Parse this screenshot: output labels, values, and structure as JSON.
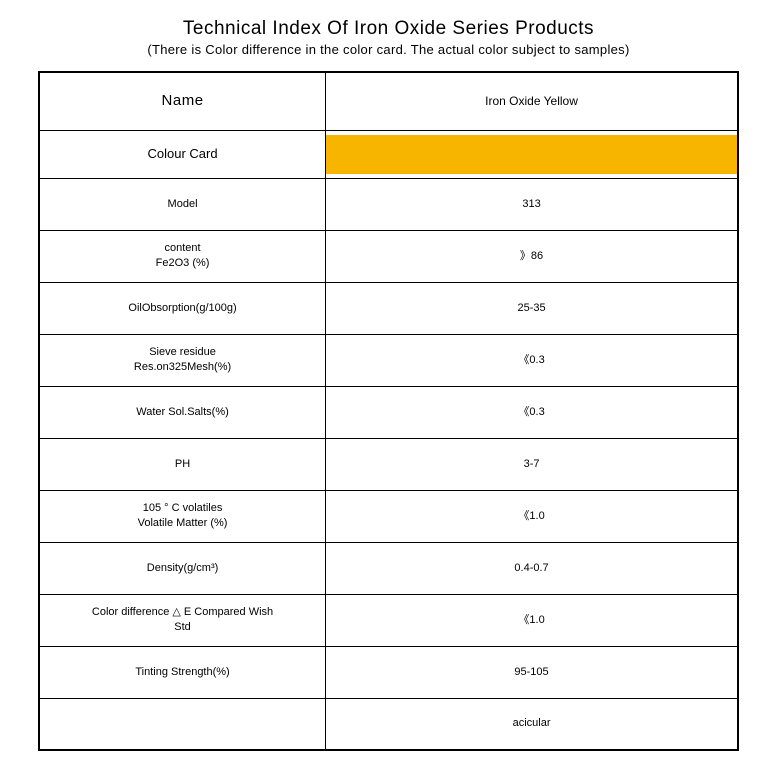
{
  "title": "Technical Index Of Iron Oxide Series Products",
  "subtitle": "(There is Color difference in the color card. The actual color subject to samples)",
  "header": {
    "left": "Name",
    "right": "Iron Oxide Yellow"
  },
  "colour_row": {
    "label": "Colour Card",
    "swatch_color": "#f7b500"
  },
  "rows": [
    {
      "label": "Model",
      "sub": "",
      "value": "313"
    },
    {
      "label": "content",
      "sub": "Fe2O3 (%)",
      "value": "》86"
    },
    {
      "label": "OilObsorption(g/100g)",
      "sub": "",
      "value": "25-35"
    },
    {
      "label": "Sieve residue",
      "sub": "Res.on325Mesh(%)",
      "value": "《0.3"
    },
    {
      "label": "Water Sol.Salts(%)",
      "sub": "",
      "value": "《0.3"
    },
    {
      "label": "PH",
      "sub": "",
      "value": "3-7"
    },
    {
      "label": "105 ° C volatiles",
      "sub": "Volatile Matter (%)",
      "value": "《1.0"
    },
    {
      "label": "Density(g/cm³)",
      "sub": "",
      "value": "0.4-0.7"
    },
    {
      "label": "Color difference △        E Compared Wish",
      "sub": "Std",
      "value": "《1.0"
    },
    {
      "label": "Tinting Strength(%)",
      "sub": "",
      "value": "95-105"
    },
    {
      "label": "",
      "sub": "",
      "value": "acicular"
    }
  ],
  "style": {
    "background": "#ffffff",
    "border_color": "#000000",
    "text_color": "#000000",
    "title_fontsize": 19,
    "subtitle_fontsize": 13,
    "cell_fontsize": 11
  }
}
